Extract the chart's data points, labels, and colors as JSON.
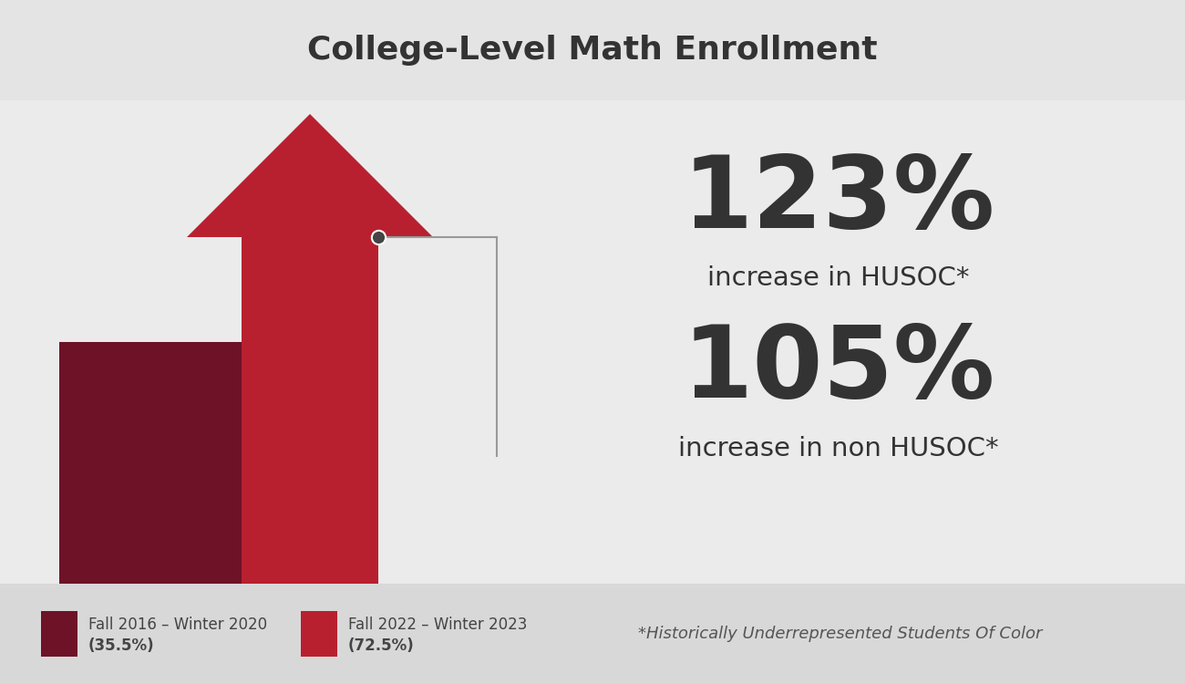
{
  "title": "College-Level Math Enrollment",
  "title_fontsize": 26,
  "title_color": "#333333",
  "bg_color": "#e8e8e8",
  "bottom_bg_color": "#d8d8d8",
  "dark_red": "#6e1228",
  "bright_red": "#b82030",
  "stat1_pct": "123%",
  "stat1_label": "increase in HUSOC",
  "stat1_super": "*",
  "stat2_pct": "105%",
  "stat2_label": "increase in non HUSOC",
  "stat2_super": "*",
  "stat_color": "#333333",
  "pct_fontsize": 80,
  "label_fontsize": 21,
  "legend1_color": "#6e1228",
  "legend2_color": "#b82030",
  "legend1_label": "Fall 2016 – Winter 2020",
  "legend1_pct": "(35.5%)",
  "legend2_label": "Fall 2022 – Winter 2023",
  "legend2_pct": "(72.5%)",
  "footnote": "*Historically Underrepresented Students Of Color",
  "legend_fontsize": 12,
  "footnote_fontsize": 13,
  "dot_color": "#444444",
  "line_color": "#999999"
}
